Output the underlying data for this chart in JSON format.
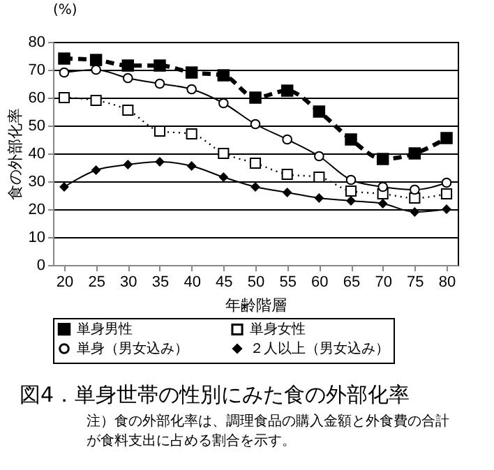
{
  "chart_data": {
    "type": "line",
    "title": "図4．単身世帯の性別にみた食の外部化率",
    "xlabel": "年齢階層",
    "ylabel": "食の外部化率",
    "annotations": [
      "(%)",
      "注）食の外部化率は、調理食品の購入金額と外食費の合計が食料支出に占める割合を示す。"
    ],
    "categories": [
      "20",
      "25",
      "30",
      "35",
      "40",
      "45",
      "50",
      "55",
      "60",
      "65",
      "70",
      "75",
      "80"
    ],
    "series": [
      {
        "name": "単身男性",
        "color": "#000000",
        "marker": "square",
        "line_style": "dashed",
        "values": [
          74,
          73.5,
          71.5,
          71.5,
          69,
          68,
          60,
          62.5,
          55,
          45,
          38,
          40,
          45.5
        ]
      },
      {
        "name": "単身女性",
        "color": "#000000",
        "marker": "square",
        "line_style": "dotted",
        "values": [
          60,
          59,
          55.5,
          48,
          47,
          40,
          36.5,
          32.5,
          31.5,
          26.5,
          25.5,
          24,
          25.5
        ]
      },
      {
        "name": "単身（男女込み）",
        "color": "#000000",
        "marker": "circle",
        "line_style": "solid",
        "values": [
          69,
          70,
          67,
          65,
          63,
          58,
          50.5,
          45,
          39,
          30.5,
          28,
          27,
          29.5
        ]
      },
      {
        "name": "２人以上（男女込み）",
        "color": "#000000",
        "marker": "diamond",
        "line_style": "solid",
        "values": [
          28,
          34,
          36,
          37,
          35.5,
          31.5,
          28,
          26,
          24,
          23,
          22,
          19,
          20
        ]
      }
    ],
    "ylim": [
      0,
      80
    ],
    "yticks": [
      0,
      10,
      20,
      30,
      40,
      50,
      60,
      70,
      80
    ],
    "grid": "y",
    "legend": "bottom"
  }
}
